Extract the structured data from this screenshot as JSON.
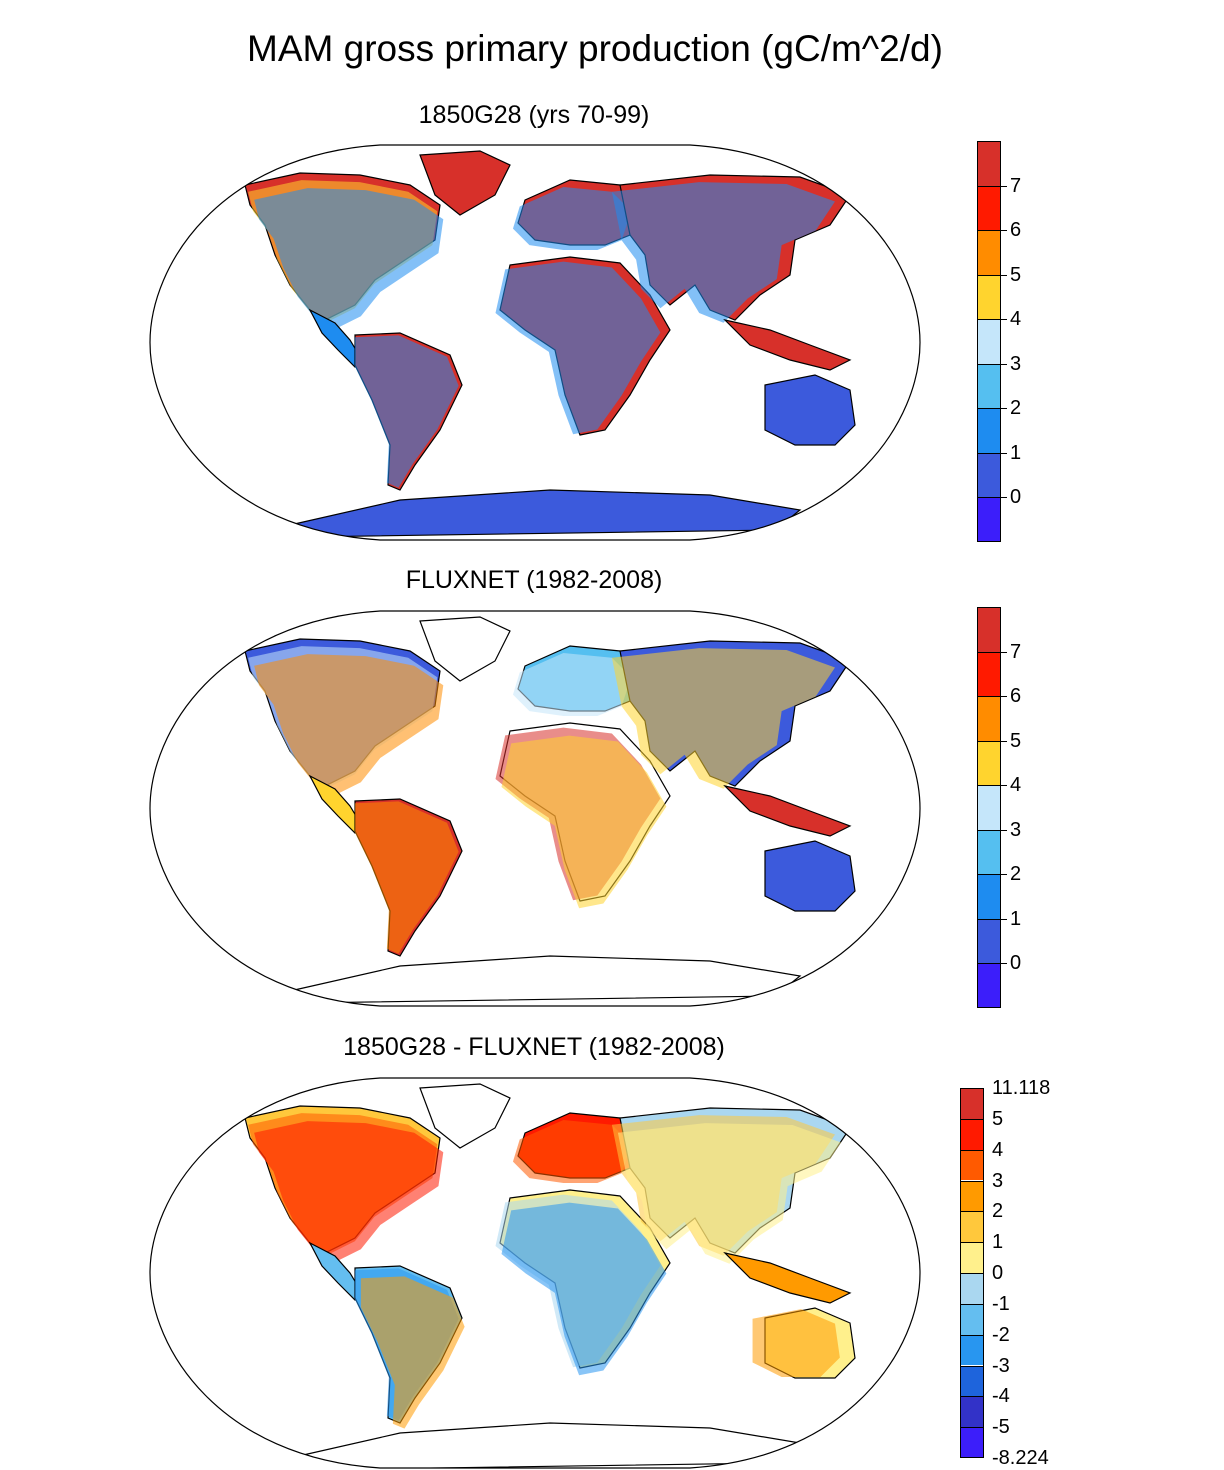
{
  "figure": {
    "title": "MAM gross primary production (gC/m^2/d)"
  },
  "panels": [
    {
      "title": "1850G28 (yrs 70-99)",
      "colorbar_labels": [
        "7",
        "6",
        "5",
        "4",
        "3",
        "2",
        "1",
        "0"
      ],
      "colorbar_colors": [
        "#d7302a",
        "#ff1a00",
        "#ff8c00",
        "#ffd42e",
        "#c5e6fa",
        "#55bff0",
        "#1e8cf0",
        "#3c5adc",
        "#3c1efa"
      ]
    },
    {
      "title": "FLUXNET (1982-2008)",
      "colorbar_labels": [
        "7",
        "6",
        "5",
        "4",
        "3",
        "2",
        "1",
        "0"
      ],
      "colorbar_colors": [
        "#d7302a",
        "#ff1a00",
        "#ff8c00",
        "#ffd42e",
        "#c5e6fa",
        "#55bff0",
        "#1e8cf0",
        "#3c5adc",
        "#3c1efa"
      ]
    },
    {
      "title": "1850G28 - FLUXNET (1982-2008)",
      "colorbar_labels": [
        "11.118",
        "5",
        "4",
        "3",
        "2",
        "1",
        "0",
        "-1",
        "-2",
        "-3",
        "-4",
        "-5",
        "-8.224"
      ],
      "colorbar_colors": [
        "#d7302a",
        "#ff1a00",
        "#ff5a00",
        "#ff9a00",
        "#ffc83c",
        "#fff08c",
        "#aad7f0",
        "#64bef0",
        "#2896f0",
        "#1e64dc",
        "#3232c8",
        "#3c1efa"
      ]
    }
  ],
  "colors": {
    "high": "#d7302a",
    "mid": "#ffd42e",
    "low": "#3c5adc",
    "ocean": "#ffffff"
  }
}
